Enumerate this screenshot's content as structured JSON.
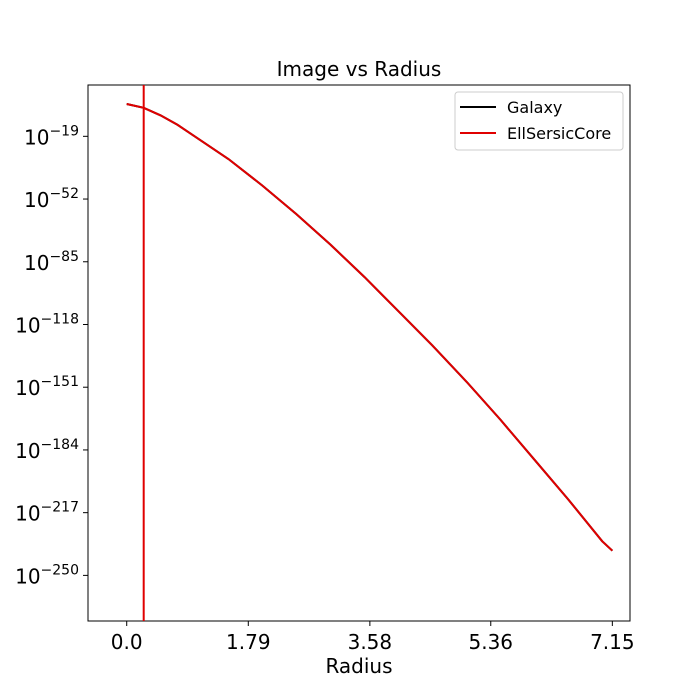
{
  "chart_data": {
    "type": "line",
    "title": "Image vs Radius",
    "xlabel": "Radius",
    "ylabel": "",
    "xlim": [
      -0.57,
      7.41
    ],
    "ylog_exponent_lim": [
      -274,
      8
    ],
    "x_ticks": [
      0.0,
      1.79,
      3.58,
      5.36,
      7.15
    ],
    "x_tick_labels": [
      "0.0",
      "1.79",
      "3.58",
      "5.36",
      "7.15"
    ],
    "y_ticks": [
      {
        "exponent": -19,
        "base": "10",
        "exp_label": "−19"
      },
      {
        "exponent": -52,
        "base": "10",
        "exp_label": "−52"
      },
      {
        "exponent": -85,
        "base": "10",
        "exp_label": "−85"
      },
      {
        "exponent": -118,
        "base": "10",
        "exp_label": "−118"
      },
      {
        "exponent": -151,
        "base": "10",
        "exp_label": "−151"
      },
      {
        "exponent": -184,
        "base": "10",
        "exp_label": "−184"
      },
      {
        "exponent": -217,
        "base": "10",
        "exp_label": "−217"
      },
      {
        "exponent": -250,
        "base": "10",
        "exp_label": "−250"
      }
    ],
    "y_scale": "log",
    "grid": false,
    "legend_position": "top-right",
    "vline": {
      "x": 0.25,
      "color": "#e00000"
    },
    "series": [
      {
        "name": "Galaxy",
        "color": "#000000",
        "x": [
          0.0,
          0.25,
          0.5,
          0.75,
          1.0,
          1.5,
          2.0,
          2.5,
          3.0,
          3.5,
          4.0,
          4.5,
          5.0,
          5.5,
          6.0,
          6.5,
          7.0,
          7.15
        ],
        "log10_y": [
          -2,
          -4,
          -8,
          -13,
          -19,
          -31,
          -45,
          -60,
          -76,
          -93,
          -111,
          -129,
          -148,
          -168,
          -189,
          -210,
          -232,
          -237
        ]
      },
      {
        "name": "EllSersicCore",
        "color": "#e00000",
        "x": [
          0.0,
          0.25,
          0.5,
          0.75,
          1.0,
          1.5,
          2.0,
          2.5,
          3.0,
          3.5,
          4.0,
          4.5,
          5.0,
          5.5,
          6.0,
          6.5,
          7.0,
          7.15
        ],
        "log10_y": [
          -2,
          -4,
          -8,
          -13,
          -19,
          -31,
          -45,
          -60,
          -76,
          -93,
          -111,
          -129,
          -148,
          -168,
          -189,
          -210,
          -232,
          -237
        ]
      }
    ]
  }
}
